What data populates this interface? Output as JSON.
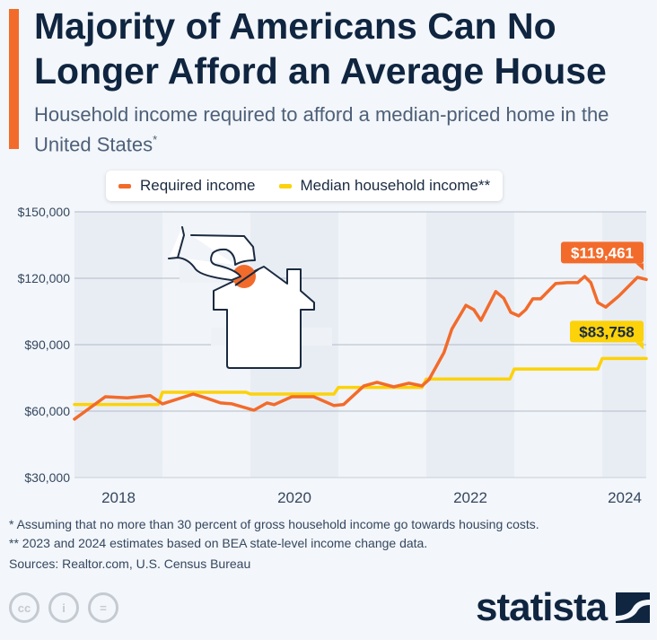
{
  "header": {
    "title": "Majority of Americans Can No Longer Afford an Average House",
    "subtitle": "Household income required to afford a median-priced home in the United States",
    "subtitle_mark": "*"
  },
  "legend": [
    {
      "label": "Required income",
      "color": "#f26b2b"
    },
    {
      "label": "Median household income**",
      "color": "#fcd20a"
    }
  ],
  "chart_data": {
    "type": "line",
    "title": "Majority of Americans Can No Longer Afford an Average House",
    "xlabel": "",
    "ylabel": "",
    "ylim": [
      30000,
      150000
    ],
    "xlim": [
      2018.0,
      2024.5
    ],
    "y_ticks": [
      30000,
      60000,
      90000,
      120000,
      150000
    ],
    "y_tick_labels": [
      "$30,000",
      "$60,000",
      "$90,000",
      "$120,000",
      "$150,000"
    ],
    "x_tick_labels": [
      {
        "year": 2018,
        "label": "2018"
      },
      {
        "year": 2020,
        "label": "2020"
      },
      {
        "year": 2022,
        "label": "2022"
      },
      {
        "year": 2024,
        "label": "2024"
      }
    ],
    "grid": true,
    "legend_position": "top",
    "series": [
      {
        "name": "Required income",
        "color": "#f26b2b",
        "x": [
          2018.0,
          2018.35,
          2018.6,
          2018.86,
          2019.0,
          2019.35,
          2019.49,
          2019.66,
          2019.79,
          2020.04,
          2020.19,
          2020.27,
          2020.47,
          2020.72,
          2020.95,
          2021.06,
          2021.29,
          2021.44,
          2021.63,
          2021.8,
          2021.95,
          2022.03,
          2022.2,
          2022.29,
          2022.45,
          2022.54,
          2022.62,
          2022.79,
          2022.88,
          2022.96,
          2023.05,
          2023.13,
          2023.21,
          2023.3,
          2023.47,
          2023.6,
          2023.72,
          2023.8,
          2023.87,
          2023.95,
          2024.04,
          2024.19,
          2024.4,
          2024.5
        ],
        "y": [
          56400,
          66500,
          66000,
          67000,
          63300,
          67700,
          66000,
          63700,
          63300,
          60400,
          63700,
          62900,
          66500,
          66500,
          62500,
          63000,
          71400,
          73000,
          71000,
          72600,
          71400,
          74200,
          86400,
          97000,
          107800,
          105800,
          101000,
          114000,
          111000,
          104600,
          103000,
          105800,
          110700,
          110700,
          117600,
          118000,
          118000,
          120800,
          118000,
          109000,
          107000,
          112000,
          120400,
          119461
        ],
        "end_label": "$119,461"
      },
      {
        "name": "Median household income**",
        "color": "#fcd20a",
        "x": [
          2018.0,
          2018.95,
          2019.0,
          2019.95,
          2020.0,
          2020.95,
          2021.0,
          2021.95,
          2022.0,
          2022.95,
          2023.0,
          2023.95,
          2024.0,
          2024.5
        ],
        "y": [
          63000,
          63000,
          68500,
          68500,
          67700,
          67700,
          70700,
          70700,
          74500,
          74500,
          79000,
          79000,
          83758,
          83758
        ],
        "end_label": "$83,758"
      }
    ]
  },
  "footer": {
    "note1": "*   Assuming that no more than 30 percent of gross household income go towards housing costs.",
    "note2": "** 2023 and 2024 estimates based on BEA state-level income change data.",
    "sources": "Sources: Realtor.com, U.S. Census Bureau",
    "license_icons": [
      "cc",
      "i",
      "="
    ],
    "logo": "statista"
  }
}
